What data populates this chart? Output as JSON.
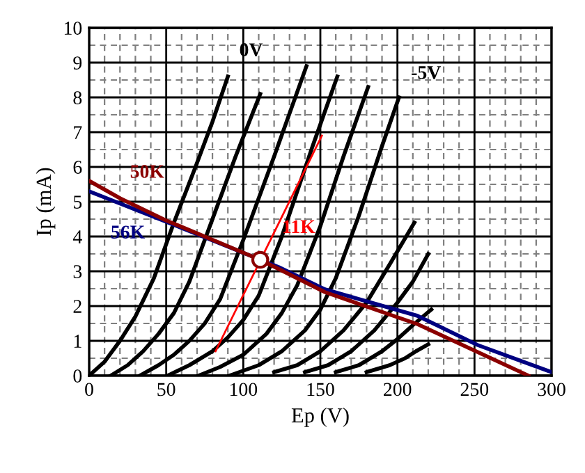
{
  "chart_data": {
    "type": "line",
    "xlabel": "Ep (V)",
    "ylabel": "Ip (mA)",
    "xlim": [
      0,
      300
    ],
    "ylim": [
      0,
      10
    ],
    "xticks": [
      0,
      50,
      100,
      150,
      200,
      250,
      300
    ],
    "yticks": [
      0,
      1,
      2,
      3,
      4,
      5,
      6,
      7,
      8,
      9,
      10
    ],
    "grid": true,
    "marker": "none",
    "line_style": "solid",
    "series": [
      {
        "name": "0V",
        "color": "#000000",
        "x": [
          0,
          10,
          20,
          30,
          42,
          55,
          69,
          80,
          90
        ],
        "values": [
          0,
          0.4,
          1.0,
          1.7,
          2.8,
          4.4,
          6.0,
          7.3,
          8.6
        ]
      },
      {
        "color": "#000000",
        "x": [
          14,
          25,
          35,
          45,
          55,
          65,
          80,
          95,
          111
        ],
        "values": [
          0,
          0.3,
          0.7,
          1.2,
          1.8,
          2.7,
          4.5,
          6.3,
          8.1
        ]
      },
      {
        "color": "#000000",
        "x": [
          33,
          45,
          55,
          65,
          75,
          85,
          100,
          120,
          141
        ],
        "values": [
          0,
          0.3,
          0.6,
          1.0,
          1.5,
          2.2,
          3.9,
          6.3,
          8.9
        ]
      },
      {
        "color": "#000000",
        "x": [
          51,
          65,
          80,
          90,
          100,
          110,
          125,
          145,
          161
        ],
        "values": [
          0,
          0.3,
          0.7,
          1.1,
          1.6,
          2.3,
          4.0,
          6.6,
          8.6
        ]
      },
      {
        "color": "#000000",
        "x": [
          71,
          85,
          100,
          115,
          125,
          135,
          150,
          165,
          181
        ],
        "values": [
          0,
          0.25,
          0.6,
          1.2,
          1.8,
          2.6,
          4.3,
          6.3,
          8.3
        ]
      },
      {
        "name": "-5V",
        "color": "#000000",
        "x": [
          91,
          110,
          125,
          140,
          150,
          160,
          175,
          190,
          201
        ],
        "values": [
          0,
          0.3,
          0.7,
          1.3,
          1.9,
          2.8,
          4.6,
          6.6,
          8.0
        ]
      },
      {
        "color": "#000000",
        "x": [
          120,
          135,
          150,
          165,
          180,
          195,
          211
        ],
        "values": [
          0.1,
          0.3,
          0.7,
          1.3,
          2.1,
          3.2,
          4.4
        ]
      },
      {
        "color": "#000000",
        "x": [
          140,
          155,
          170,
          185,
          200,
          210,
          220
        ],
        "values": [
          0.1,
          0.3,
          0.7,
          1.3,
          2.1,
          2.7,
          3.5
        ]
      },
      {
        "color": "#000000",
        "x": [
          160,
          175,
          190,
          200,
          210,
          222
        ],
        "values": [
          0.1,
          0.3,
          0.7,
          1.05,
          1.45,
          1.9
        ]
      },
      {
        "color": "#000000",
        "x": [
          180,
          195,
          205,
          212,
          220
        ],
        "values": [
          0.1,
          0.3,
          0.5,
          0.7,
          0.9
        ]
      },
      {
        "name": "11K",
        "color": "#ff0000",
        "x": [
          82,
          151
        ],
        "values": [
          0.7,
          6.9
        ]
      },
      {
        "name": "56K",
        "color": "#000080",
        "x": [
          0,
          49,
          123,
          153,
          213,
          252,
          300
        ],
        "values": [
          5.3,
          4.44,
          3.12,
          2.48,
          1.72,
          0.88,
          0.1
        ]
      },
      {
        "name": "50K",
        "color": "#8b0000",
        "x": [
          0,
          20,
          49,
          111,
          153,
          213,
          285
        ],
        "values": [
          5.6,
          5.1,
          4.48,
          3.33,
          2.4,
          1.48,
          0
        ]
      },
      {
        "type": "scatter",
        "marker": "circle",
        "color": "#8b0000",
        "x": [
          111
        ],
        "values": [
          3.33
        ]
      }
    ]
  }
}
